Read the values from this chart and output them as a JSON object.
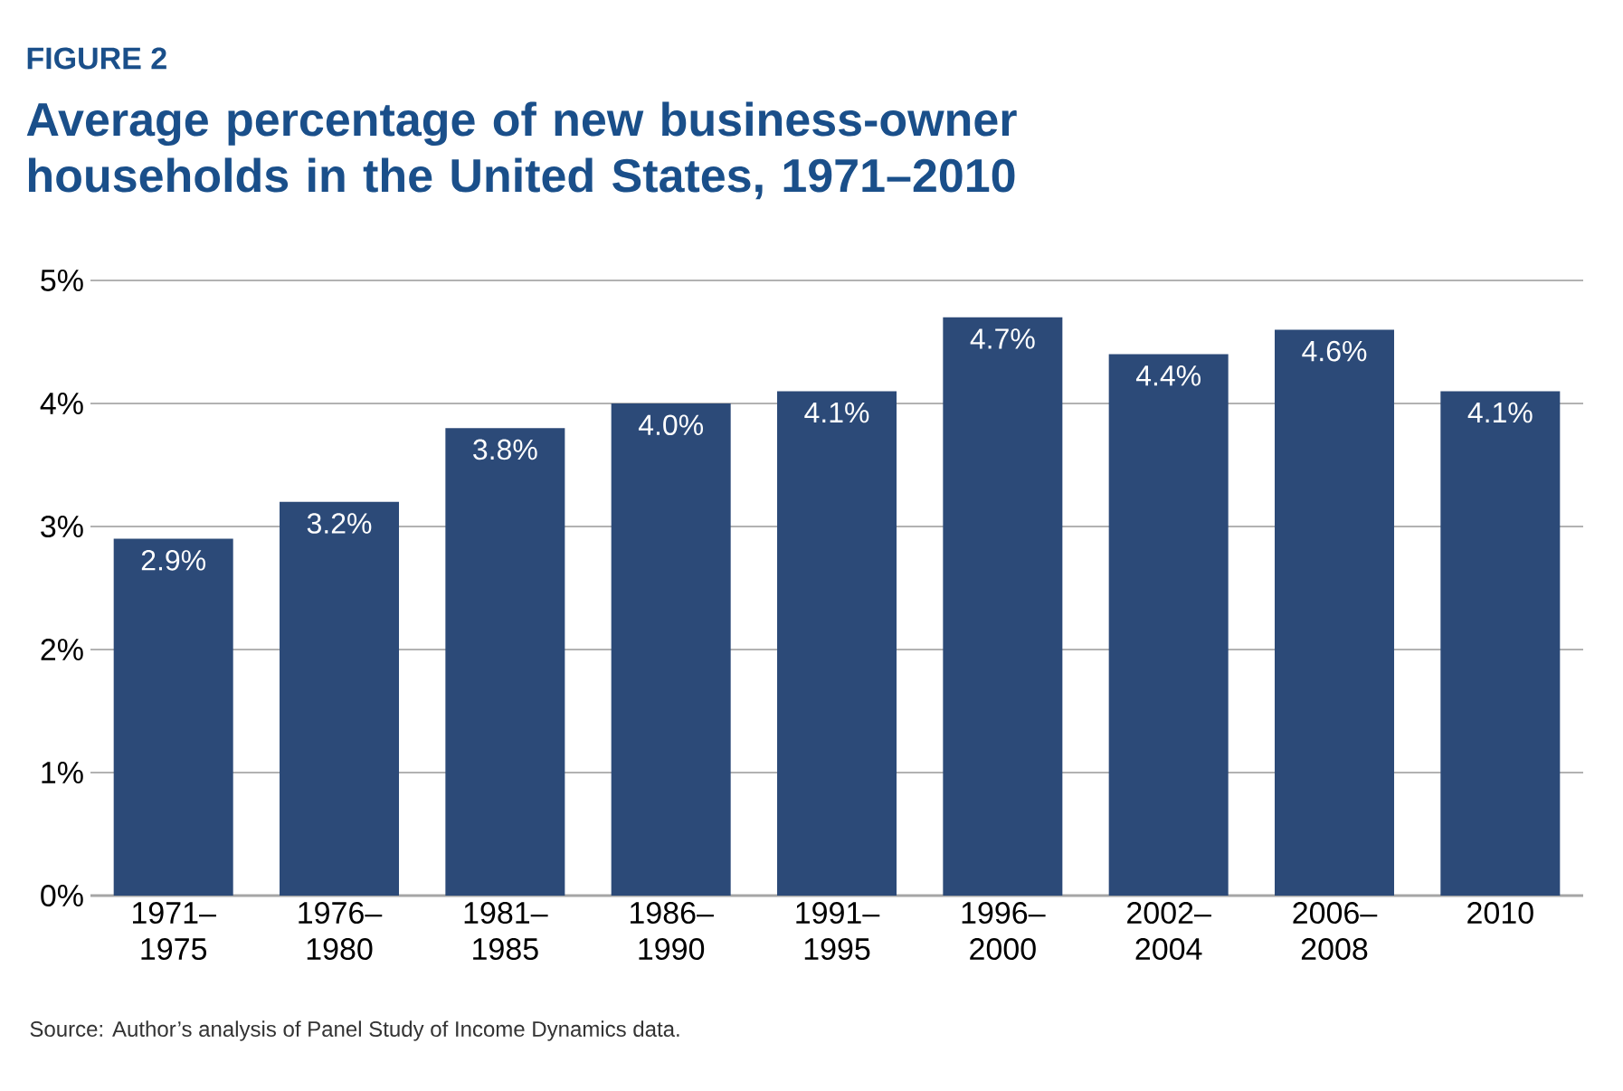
{
  "chart_data": {
    "type": "bar",
    "subtitle": "FIGURE 2",
    "title": "Average percentage of new business-owner households in the United States, 1971–2010",
    "categories": [
      "1971– 1975",
      "1976– 1980",
      "1981– 1985",
      "1986– 1990",
      "1991– 1995",
      "1996– 2000",
      "2002– 2004",
      "2006– 2008",
      "2010"
    ],
    "values": [
      2.9,
      3.2,
      3.8,
      4.0,
      4.1,
      4.7,
      4.4,
      4.6,
      4.1
    ],
    "value_labels": [
      "2.9%",
      "3.2%",
      "3.8%",
      "4.0%",
      "4.1%",
      "4.7%",
      "4.4%",
      "4.6%",
      "4.1%"
    ],
    "color": "#2c4a78",
    "ylim": [
      0,
      5
    ],
    "yticks": [
      {
        "value": 0,
        "label": "0%"
      },
      {
        "value": 1,
        "label": "1%"
      },
      {
        "value": 2,
        "label": "2%"
      },
      {
        "value": 3,
        "label": "3%"
      },
      {
        "value": 4,
        "label": "4%"
      },
      {
        "value": 5,
        "label": "5%"
      }
    ],
    "grid": "y",
    "annotations": [
      "Source: Author’s analysis of Panel Study of Income Dynamics data."
    ]
  }
}
